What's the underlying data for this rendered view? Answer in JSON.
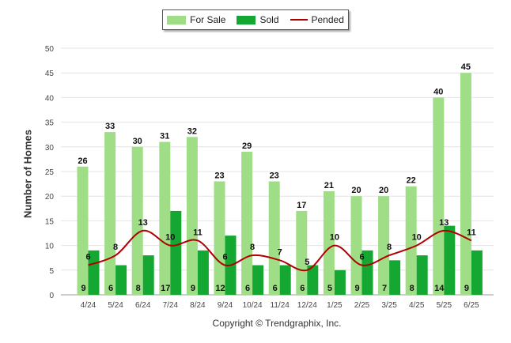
{
  "chart_data": {
    "type": "bar",
    "categories": [
      "4/24",
      "5/24",
      "6/24",
      "7/24",
      "8/24",
      "9/24",
      "10/24",
      "11/24",
      "12/24",
      "1/25",
      "2/25",
      "3/25",
      "4/25",
      "5/25",
      "6/25"
    ],
    "series": [
      {
        "name": "For Sale",
        "type": "bar",
        "color": "#9fde86",
        "values": [
          26,
          33,
          30,
          31,
          32,
          23,
          29,
          23,
          17,
          21,
          20,
          20,
          22,
          40,
          45
        ]
      },
      {
        "name": "Sold",
        "type": "bar",
        "color": "#14a832",
        "values": [
          9,
          6,
          8,
          17,
          9,
          12,
          6,
          6,
          6,
          5,
          9,
          7,
          8,
          14,
          9
        ]
      },
      {
        "name": "Pended",
        "type": "line",
        "color": "#b00000",
        "values": [
          6,
          8,
          13,
          10,
          11,
          6,
          8,
          7,
          5,
          10,
          6,
          8,
          10,
          13,
          11
        ]
      }
    ],
    "ylabel": "Number of Homes",
    "xlabel": "",
    "ylim": [
      0,
      50
    ],
    "yticks": [
      0,
      5,
      10,
      15,
      20,
      25,
      30,
      35,
      40,
      45,
      50
    ],
    "grid": true,
    "legend_position": "top-center"
  },
  "legend": {
    "for_sale": "For Sale",
    "sold": "Sold",
    "pended": "Pended"
  },
  "footer": {
    "copyright": "Copyright © Trendgraphix, Inc."
  }
}
